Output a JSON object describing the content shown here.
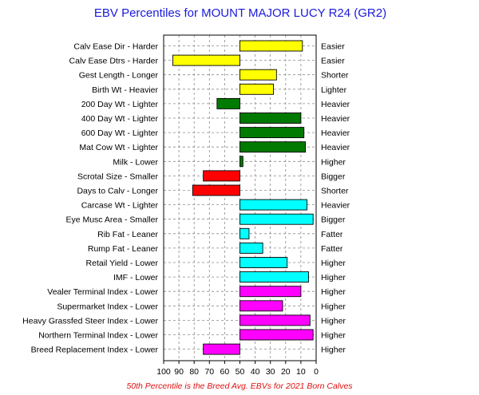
{
  "chart_data": {
    "type": "bar",
    "orientation": "horizontal",
    "title": "EBV Percentiles for MOUNT MAJOR LUCY R24 (GR2)",
    "footnote": "50th Percentile is the Breed Avg. EBVs for 2021 Born Calves",
    "baseline": 50,
    "xlim": [
      100,
      0
    ],
    "x_reversed": true,
    "grid": true,
    "xticks": [
      100,
      90,
      80,
      70,
      60,
      50,
      40,
      30,
      20,
      10,
      0
    ],
    "categories": [
      "Calv Ease Dir - Harder",
      "Calv Ease Dtrs - Harder",
      "Gest Length - Longer",
      "Birth Wt - Heavier",
      "200 Day Wt - Lighter",
      "400 Day Wt - Lighter",
      "600 Day Wt - Lighter",
      "Mat Cow Wt - Lighter",
      "Milk - Lower",
      "Scrotal Size - Smaller",
      "Days to Calv - Longer",
      "Carcase Wt - Lighter",
      "Eye Musc Area - Smaller",
      "Rib Fat - Leaner",
      "Rump Fat - Leaner",
      "Retail Yield - Lower",
      "IMF - Lower",
      "Vealer Terminal Index - Lower",
      "Supermarket Index - Lower",
      "Heavy Grassfed Steer Index - Lower",
      "Northern Terminal Index - Lower",
      "Breed Replacement Index - Lower"
    ],
    "right_labels": [
      "Easier",
      "Easier",
      "Shorter",
      "Lighter",
      "Heavier",
      "Heavier",
      "Heavier",
      "Heavier",
      "Higher",
      "Bigger",
      "Shorter",
      "Heavier",
      "Bigger",
      "Fatter",
      "Fatter",
      "Higher",
      "Higher",
      "Higher",
      "Higher",
      "Higher",
      "Higher",
      "Higher"
    ],
    "values": [
      9,
      94,
      26,
      28,
      65,
      10,
      8,
      7,
      48,
      74,
      81,
      6,
      2,
      44,
      35,
      19,
      5,
      10,
      22,
      4,
      2,
      74
    ],
    "groups": [
      "yellow",
      "yellow",
      "yellow",
      "yellow",
      "green",
      "green",
      "green",
      "green",
      "green",
      "red",
      "red",
      "cyan",
      "cyan",
      "cyan",
      "cyan",
      "cyan",
      "cyan",
      "magenta",
      "magenta",
      "magenta",
      "magenta",
      "magenta"
    ],
    "colors": {
      "yellow": "#ffff00",
      "green": "#007a00",
      "red": "#ff0000",
      "cyan": "#00ffff",
      "magenta": "#ff00ff",
      "title": "#1a1adc",
      "footnote": "#e01010"
    }
  }
}
